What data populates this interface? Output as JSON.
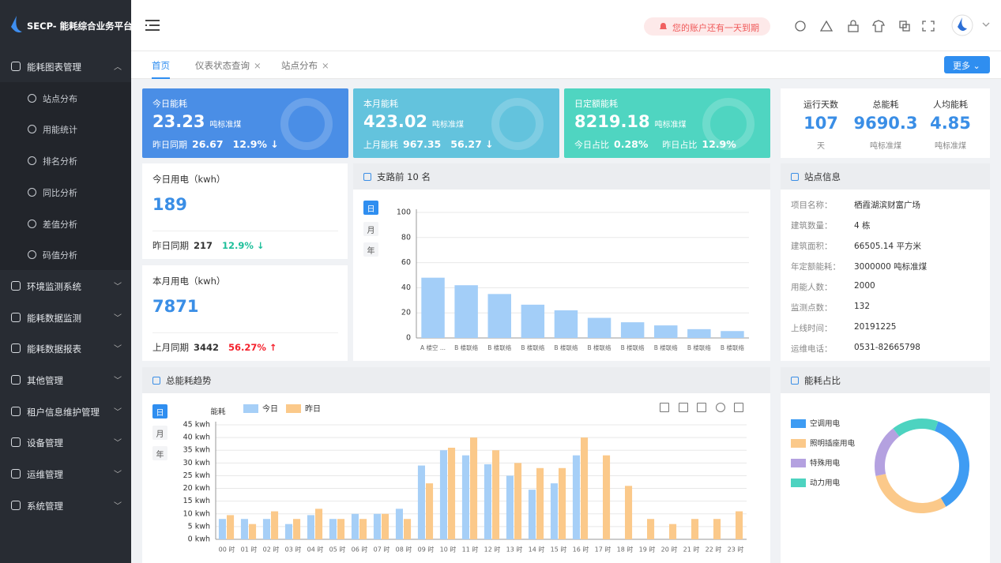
{
  "sidebar": {
    "logo": "SECP- 能耗综合业务平台",
    "menu": [
      {
        "label": "能耗图表管理",
        "children": [
          "站点分布",
          "用能统计",
          "排名分析",
          "同比分析",
          "差值分析",
          "码值分析"
        ]
      },
      {
        "label": "环境监测系统"
      },
      {
        "label": "能耗数据监测"
      },
      {
        "label": "能耗数据报表"
      },
      {
        "label": "其他管理"
      },
      {
        "label": "租户信息维护管理"
      },
      {
        "label": "设备管理"
      },
      {
        "label": "运维管理"
      },
      {
        "label": "系统管理"
      }
    ]
  },
  "header": {
    "alert": "您的账户还有一天到期"
  },
  "tabs": {
    "items": [
      "首页",
      "仪表状态查询",
      "站点分布"
    ],
    "more": "更多"
  },
  "cards": [
    {
      "title": "今日能耗",
      "value": 23.23,
      "unit": "吨标准煤",
      "compare": [
        [
          "昨日同期",
          26.67
        ]
      ],
      "change": "12.9% ↓",
      "color": "#4a8ee6"
    },
    {
      "title": "本月能耗",
      "value": 423.02,
      "unit": "吨标准煤",
      "compare": [
        [
          "上月能耗",
          967.35
        ]
      ],
      "change": "56.27 ↓",
      "color": "#63c3dd"
    },
    {
      "title": "日定额能耗",
      "value": 8219.18,
      "unit": "吨标准煤",
      "compare": [
        [
          "今日占比",
          "0.28%"
        ],
        [
          "昨日占比",
          "12.9%"
        ]
      ],
      "color": "#4fd5c1"
    }
  ],
  "summary": [
    {
      "label": "运行天数",
      "value": 107,
      "unit": "天"
    },
    {
      "label": "总能耗",
      "value": 9690.3,
      "unit": "吨标准煤"
    },
    {
      "label": "人均能耗",
      "value": 4.85,
      "unit": "吨标准煤"
    }
  ],
  "power": [
    {
      "title": "今日用电（kwh）",
      "value": 189,
      "compare_label": "昨日同期",
      "compare_value": 217,
      "change": "12.9% ↓",
      "color": "#1dbf9a"
    },
    {
      "title": "本月用电（kwh）",
      "value": 7871,
      "compare_label": "上月同期",
      "compare_value": 3442,
      "change": "56.27% ↑",
      "color": "#f5222d"
    }
  ],
  "site_info": {
    "title": "站点信息",
    "rows": [
      [
        "项目名称：",
        "栖霞湖滨财富广场"
      ],
      [
        "建筑数量：",
        "4 栋"
      ],
      [
        "建筑面积：",
        "66505.14 平方米"
      ],
      [
        "年定额能耗：",
        "3000000 吨标准煤"
      ],
      [
        "用能人数：",
        "2000"
      ],
      [
        "监测点数：",
        "132"
      ],
      [
        "上线时间：",
        "20191225"
      ],
      [
        "运维电话：",
        "0531-82665798"
      ]
    ]
  },
  "chart_data": [
    {
      "type": "bar",
      "title": "支路前 10 名",
      "periods": [
        "日",
        "月",
        "年"
      ],
      "categories": [
        "A 楼空 ...",
        "B 楼联络",
        "B 楼联络",
        "B 楼联络",
        "B 楼联络",
        "B 楼联络",
        "B 楼联络",
        "B 楼联络",
        "B 楼联络",
        "B 楼联络"
      ],
      "values": [
        48,
        42,
        35,
        26.5,
        22,
        16,
        12.5,
        10,
        7,
        5.5
      ],
      "color": "#a3cef8",
      "ylim": [
        0,
        100
      ],
      "yticks": [
        0,
        20,
        40,
        60,
        80,
        100
      ],
      "grid": true
    },
    {
      "type": "grouped-bar",
      "title": "总能耗趋势",
      "periods": [
        "日",
        "月",
        "年"
      ],
      "y_label": "能耗",
      "categories": [
        "00 时",
        "01 时",
        "02 时",
        "03 时",
        "04 时",
        "05 时",
        "06 时",
        "07 时",
        "08 时",
        "09 时",
        "10 时",
        "11 时",
        "12 时",
        "13 时",
        "14 时",
        "15 时",
        "16 时",
        "17 时",
        "18 时",
        "19 时",
        "20 时",
        "21 时",
        "22 时",
        "23 时"
      ],
      "series": [
        {
          "name": "今日",
          "color": "#a6cff7",
          "values": [
            8,
            8,
            8,
            6,
            9.5,
            8,
            10,
            10,
            12,
            29,
            35,
            33,
            29.5,
            25,
            19.5,
            22,
            33,
            null,
            null,
            null,
            null,
            null,
            null,
            null
          ]
        },
        {
          "name": "昨日",
          "color": "#fbc98a",
          "values": [
            9.5,
            6,
            11,
            8,
            12,
            8,
            8,
            10,
            8,
            22,
            36,
            40,
            35,
            30,
            28,
            28,
            40,
            33,
            21,
            8,
            6,
            8,
            8,
            11
          ]
        }
      ],
      "ylim": [
        0,
        45
      ],
      "yticks": [
        {
          "value": 0,
          "label": "0 kwh"
        },
        {
          "value": 5,
          "label": "5 kwh"
        },
        {
          "value": 10,
          "label": "10 kwh"
        },
        {
          "value": 15,
          "label": "15 kwh"
        },
        {
          "value": 20,
          "label": "20 kwh"
        },
        {
          "value": 25,
          "label": "25 kwh"
        },
        {
          "value": 30,
          "label": "30 kwh"
        },
        {
          "value": 35,
          "label": "35 kwh"
        },
        {
          "value": 40,
          "label": "40 kwh"
        },
        {
          "value": 45,
          "label": "45 kwh"
        }
      ],
      "grid": true
    },
    {
      "type": "pie",
      "title": "能耗占比",
      "donut": true,
      "categories": [
        "空调用电",
        "照明插座用电",
        "特殊用电",
        "动力用电"
      ],
      "colors": [
        "#3e9cf3",
        "#fbc98a",
        "#b4a1e0",
        "#4dd3c0"
      ],
      "values": [
        36,
        30,
        18,
        16
      ]
    }
  ]
}
